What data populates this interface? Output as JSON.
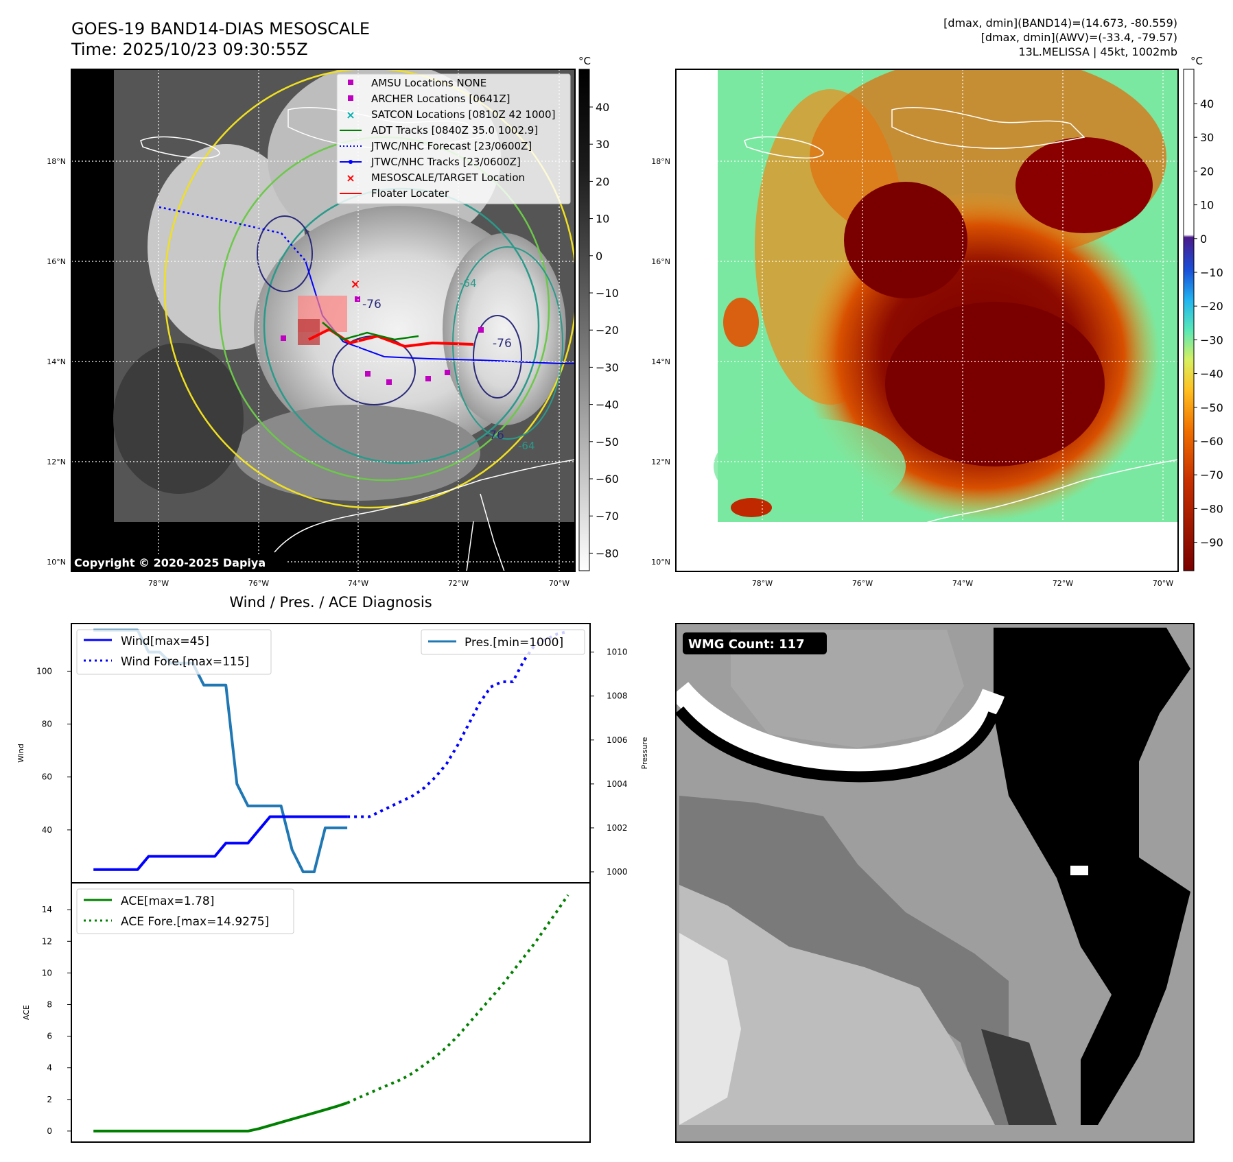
{
  "header": {
    "title_line1": "GOES-19 BAND14-DIAS MESOSCALE",
    "title_line2": "Time: 2025/10/23 09:30:55Z",
    "info_line1": "[dmax, dmin](BAND14)=(14.673, -80.559)",
    "info_line2": "[dmax, dmin](AWV)=(-33.4, -79.57)",
    "info_line3": "13L.MELISSA | 45kt, 1002mb"
  },
  "map": {
    "lat_labels": [
      "18°N",
      "16°N",
      "14°N",
      "12°N",
      "10°N"
    ],
    "lon_labels": [
      "78°W",
      "76°W",
      "74°W",
      "72°W",
      "70°W"
    ],
    "copyright": "Copyright © 2020-2025 Dapiya",
    "contour_labels": [
      "-76",
      "-64",
      "-76",
      "-76",
      "-64"
    ],
    "legend": [
      {
        "label": "AMSU Locations NONE",
        "symbol": "square",
        "color": "#c000c0"
      },
      {
        "label": "ARCHER Locations [0641Z]",
        "symbol": "square",
        "color": "#c000c0"
      },
      {
        "label": "SATCON Locations [0810Z 42 1000]",
        "symbol": "x",
        "color": "#00b0b0"
      },
      {
        "label": "ADT Tracks [0840Z 35.0 1002.9]",
        "symbol": "line",
        "color": "#008000"
      },
      {
        "label": "JTWC/NHC Forecast [23/0600Z]",
        "symbol": "dotted",
        "color": "#0000ff"
      },
      {
        "label": "JTWC/NHC Tracks [23/0600Z]",
        "symbol": "line-dot",
        "color": "#0000ff"
      },
      {
        "label": "MESOSCALE/TARGET Location",
        "symbol": "x",
        "color": "#ff0000"
      },
      {
        "label": "Floater Locater",
        "symbol": "line",
        "color": "#ff0000"
      }
    ]
  },
  "colorbar_left": {
    "unit": "°C",
    "ticks": [
      "40",
      "30",
      "20",
      "10",
      "0",
      "−10",
      "−20",
      "−30",
      "−40",
      "−50",
      "−60",
      "−70",
      "−80"
    ]
  },
  "colorbar_right": {
    "unit": "°C",
    "ticks": [
      "40",
      "30",
      "20",
      "10",
      "0",
      "−10",
      "−20",
      "−30",
      "−40",
      "−50",
      "−60",
      "−70",
      "−80",
      "−90"
    ]
  },
  "wmg": {
    "count_label": "WMG Count: 117"
  },
  "chart_data": [
    {
      "type": "line",
      "title": "Wind / Pres. / ACE Diagnosis",
      "ylabel": "Wind",
      "ylim": [
        20,
        118
      ],
      "yticks": [
        40,
        60,
        80,
        100
      ],
      "series": [
        {
          "name": "Wind[max=45]",
          "style": "solid",
          "color": "#0000ff",
          "x": [
            0,
            1,
            1.5,
            2,
            2.5,
            3,
            3.5,
            4,
            4.5,
            5,
            5.5,
            6,
            6.5,
            7,
            7.5,
            8,
            8.5,
            9,
            9.5,
            10,
            10.5,
            11,
            11.5
          ],
          "values": [
            25,
            25,
            25,
            25,
            30,
            30,
            30,
            30,
            30,
            30,
            30,
            35,
            35,
            35,
            40,
            45,
            45,
            45,
            45,
            45,
            45,
            45,
            45
          ]
        },
        {
          "name": "Wind Fore.[max=115]",
          "style": "dotted",
          "color": "#0000ff",
          "x": [
            11.5,
            12.5,
            13,
            13.5,
            14,
            14.5,
            15,
            15.5,
            16,
            16.5,
            17,
            17.5,
            18,
            18.5,
            19,
            19.5,
            20,
            20.5,
            21,
            21.5
          ],
          "values": [
            45,
            45,
            47,
            49,
            51,
            53,
            56,
            60,
            65,
            72,
            80,
            88,
            94,
            96,
            96,
            104,
            110,
            112,
            114,
            115
          ]
        }
      ],
      "secondary": {
        "ylabel": "Pressure",
        "ylim": [
          999.5,
          1011.3
        ],
        "yticks": [
          1000,
          1002,
          1004,
          1006,
          1008,
          1010
        ],
        "series": [
          {
            "name": "Pres.[min=1000]",
            "style": "solid",
            "color": "#1f77b4",
            "x": [
              0,
              1,
              1.5,
              2,
              2.5,
              3,
              3.5,
              4,
              4.5,
              5,
              5.5,
              6,
              6.5,
              7,
              7.5,
              8,
              8.5,
              9,
              9.5,
              10,
              10.5,
              11,
              11.5
            ],
            "values": [
              1011,
              1011,
              1011,
              1011,
              1010,
              1010,
              1009.5,
              1009.5,
              1009.5,
              1008.5,
              1008.5,
              1008.5,
              1004,
              1003,
              1003,
              1003,
              1003,
              1001,
              1000,
              1000,
              1002,
              1002,
              1002
            ]
          }
        ]
      }
    },
    {
      "type": "line",
      "ylabel": "ACE",
      "ylim": [
        -0.7,
        15.7
      ],
      "yticks": [
        0,
        2,
        4,
        6,
        8,
        10,
        12,
        14
      ],
      "series": [
        {
          "name": "ACE[max=1.78]",
          "style": "solid",
          "color": "#008000",
          "x": [
            0,
            1,
            2,
            3,
            4,
            5,
            6,
            7,
            7.5,
            8,
            8.5,
            9,
            9.5,
            10,
            10.5,
            11,
            11.5
          ],
          "values": [
            0,
            0,
            0,
            0,
            0,
            0,
            0,
            0,
            0.15,
            0.35,
            0.55,
            0.75,
            0.95,
            1.15,
            1.35,
            1.55,
            1.78
          ]
        },
        {
          "name": "ACE Fore.[max=14.9275]",
          "style": "dotted",
          "color": "#008000",
          "x": [
            11.5,
            12,
            12.5,
            13,
            13.5,
            14,
            14.5,
            15,
            15.5,
            16,
            16.5,
            17,
            17.5,
            18,
            18.5,
            19,
            19.5,
            20,
            20.5,
            21,
            21.5
          ],
          "values": [
            1.78,
            2.1,
            2.4,
            2.7,
            3.0,
            3.3,
            3.7,
            4.2,
            4.7,
            5.3,
            6.0,
            6.8,
            7.6,
            8.4,
            9.2,
            10.1,
            11.0,
            11.9,
            12.9,
            13.9,
            14.9275
          ]
        }
      ]
    }
  ]
}
